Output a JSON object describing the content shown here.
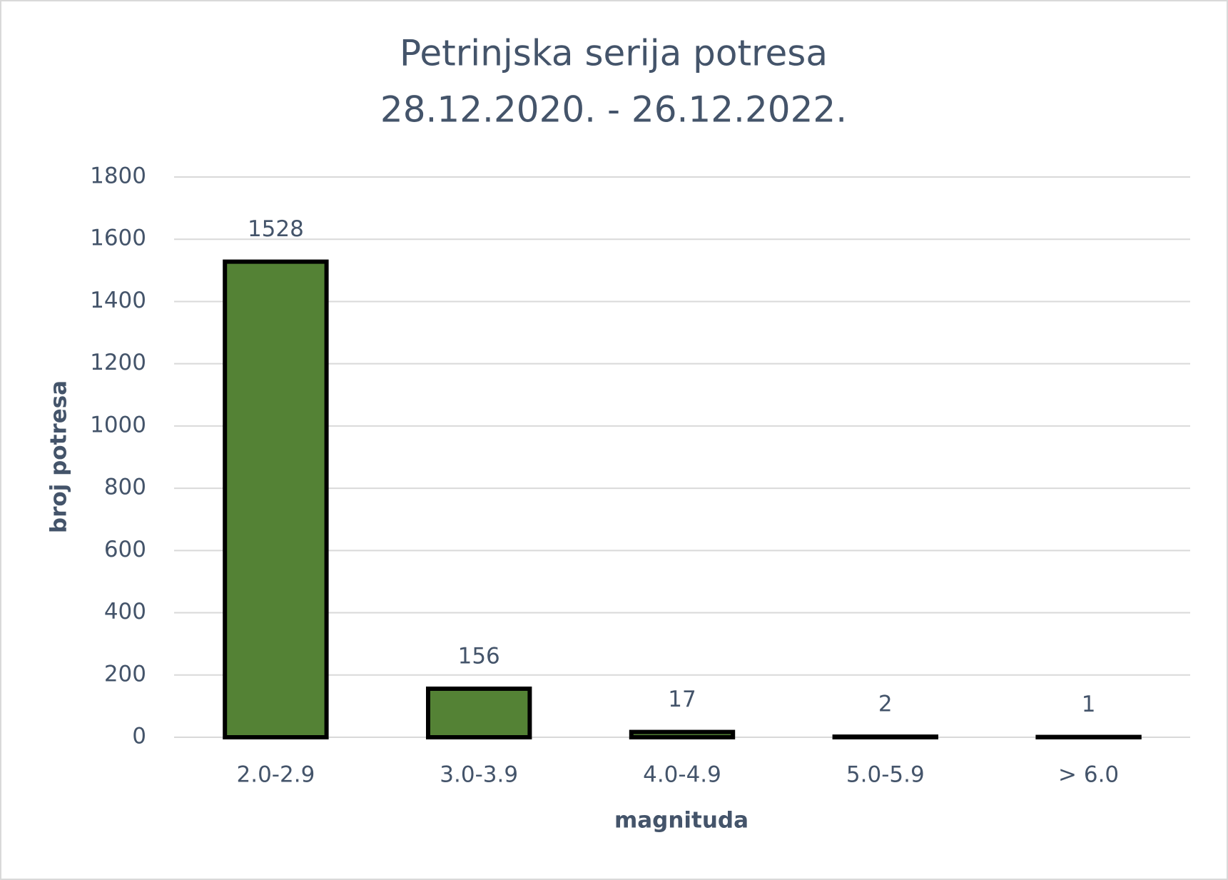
{
  "chart_data": {
    "type": "bar",
    "title": [
      "Petrinjska serija potresa",
      "28.12.2020. - 26.12.2022."
    ],
    "x_label": "magnituda",
    "y_label": "broj potresa",
    "categories": [
      "2.0-2.9",
      "3.0-3.9",
      "4.0-4.9",
      "5.0-5.9",
      "> 6.0"
    ],
    "values": [
      1528,
      156,
      17,
      2,
      1
    ],
    "color": "#548235",
    "ylim": [
      0,
      1800
    ],
    "yticks": [
      0,
      200,
      400,
      600,
      800,
      1000,
      1200,
      1400,
      1600,
      1800
    ],
    "grid": true
  }
}
